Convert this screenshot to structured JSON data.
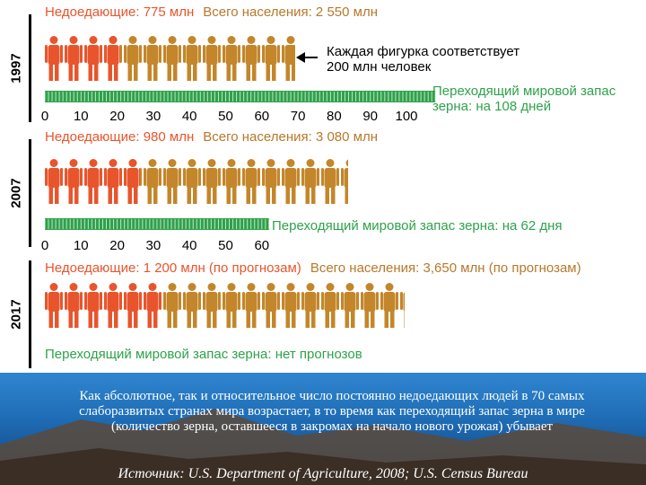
{
  "chart_data": {
    "type": "pictograph",
    "unit_note": "Каждая фигурка соответствует\n200 млн человек",
    "panels": [
      {
        "year": "1997",
        "undernourished_label": "Недоедающие: 775 млн",
        "population_label": "Всего населения: 2 550 млн",
        "undernourished_mln": 775,
        "population_mln": 2550,
        "reserve_label": "Переходящий мировой запас\nзерна: на 108 дней",
        "reserve_days": 108,
        "axis_ticks": [
          "0",
          "10",
          "20",
          "30",
          "40",
          "50",
          "60",
          "70",
          "80",
          "90",
          "100"
        ]
      },
      {
        "year": "2007",
        "undernourished_label": "Недоедающие: 980 млн",
        "population_label": "Всего населения: 3 080 млн",
        "undernourished_mln": 980,
        "population_mln": 3080,
        "reserve_label": "Переходящий мировой запас зерна: на 62 дня",
        "reserve_days": 62,
        "axis_ticks": [
          "0",
          "10",
          "20",
          "30",
          "40",
          "50",
          "60"
        ]
      },
      {
        "year": "2017",
        "undernourished_label": "Недоедающие: 1 200 млн (по прогнозам)",
        "population_label": "Всего населения: 3,650 млн (по прогнозам)",
        "undernourished_mln": 1200,
        "population_mln": 3650,
        "reserve_label": "Переходящий мировой запас зерна: нет прогнозов",
        "reserve_days": null,
        "axis_ticks": []
      }
    ]
  },
  "caption": "Как абсолютное, так и относительное число постоянно недоедающих людей в 70 самых слаборазвитых странах мира возрастает, в то время как переходящий запас зерна в мире (количество зерна, оставшееся в закромах на начало нового урожая) убывает",
  "source": "Источник: U.S. Department of Agriculture, 2008; U.S. Census Bureau",
  "colors": {
    "undernourished": "#e8552c",
    "population": "#c4862a",
    "reserve": "#2ea24a",
    "label_red": "#e8552c",
    "label_brown": "#b8782a",
    "label_green": "#2ea24a"
  }
}
